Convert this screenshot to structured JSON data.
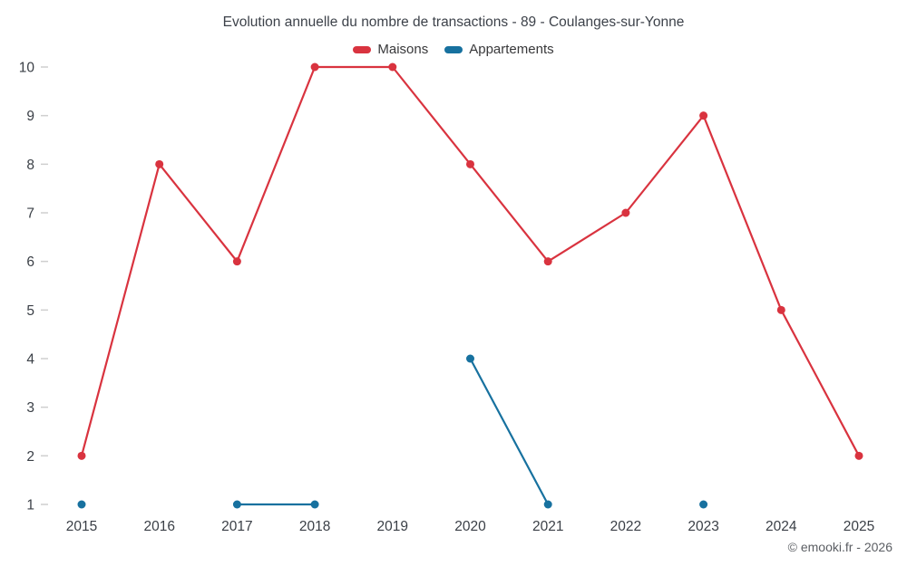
{
  "header": {
    "title": "Evolution annuelle du nombre de transactions - 89 - Coulanges-sur-Yonne"
  },
  "legend": {
    "items": [
      {
        "label": "Maisons",
        "color": "#d9333f"
      },
      {
        "label": "Appartements",
        "color": "#17719f"
      }
    ]
  },
  "footer": {
    "copyright": "© emooki.fr - 2026"
  },
  "chart_data": {
    "type": "line",
    "title": "Evolution annuelle du nombre de transactions - 89 - Coulanges-sur-Yonne",
    "categories": [
      "2015",
      "2016",
      "2017",
      "2018",
      "2019",
      "2020",
      "2021",
      "2022",
      "2023",
      "2024",
      "2025"
    ],
    "series": [
      {
        "name": "Maisons",
        "color": "#d9333f",
        "values": [
          2,
          8,
          6,
          10,
          10,
          8,
          6,
          7,
          9,
          5,
          2
        ]
      },
      {
        "name": "Appartements",
        "color": "#17719f",
        "values": [
          1,
          null,
          1,
          1,
          null,
          4,
          1,
          null,
          1,
          null,
          null
        ]
      }
    ],
    "xlabel": "",
    "ylabel": "",
    "ylim": [
      1,
      10
    ],
    "yticks": [
      1,
      2,
      3,
      4,
      5,
      6,
      7,
      8,
      9,
      10
    ],
    "grid": false,
    "legend_position": "top",
    "marker_radius": 4.5,
    "line_width": 2.2,
    "tick_color": "#cfcfcf",
    "axis_label_color": "#3a3f46"
  }
}
